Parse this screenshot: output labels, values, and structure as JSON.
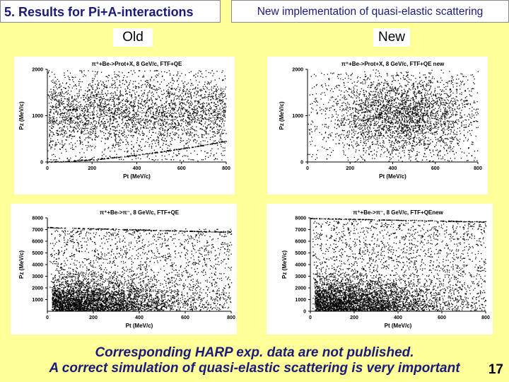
{
  "header": {
    "left_title": "5. Results for Pi+A-interactions",
    "right_title": "New implementation of quasi-elastic scattering"
  },
  "columns": {
    "old_label": "Old",
    "new_label": "New"
  },
  "footer": {
    "line1": "Corresponding HARP exp. data are not published.",
    "line2": "A correct simulation of quasi-elastic scattering is very important",
    "page_number": "17"
  },
  "chart_data": [
    {
      "type": "scatter",
      "title": "π⁺+Be->Prot+X, 8 GeV/c, FTF+QE",
      "xlabel": "Pt (MeV/c)",
      "ylabel": "Pz (MeV/c)",
      "xlim": [
        0,
        800
      ],
      "ylim": [
        0,
        2000
      ],
      "xticks": [
        0,
        200,
        400,
        600,
        800
      ],
      "yticks": [
        0,
        1000,
        2000
      ],
      "features": [
        "dense band Pz 700-1600",
        "curved artifact line rising from (0,0) to (800,450)"
      ]
    },
    {
      "type": "scatter",
      "title": "π⁺+Be->Prot+X, 8 GeV/c, FTF+QE new",
      "xlabel": "Pt (MeV/c)",
      "ylabel": "Pz (MeV/c)",
      "xlim": [
        0,
        800
      ],
      "ylim": [
        0,
        2000
      ],
      "xticks": [
        0,
        200,
        400,
        600,
        800
      ],
      "yticks": [
        0,
        1000,
        2000
      ],
      "features": [
        "diffuse cloud centred near Pt 450, Pz 1000"
      ]
    },
    {
      "type": "scatter",
      "title": "π⁺+Be->π⁻, 8 GeV/c, FTF+QE",
      "xlabel": "Pt (MeV/c)",
      "ylabel": "Pz (MeV/c)",
      "xlim": [
        0,
        800
      ],
      "ylim": [
        0,
        8000
      ],
      "xticks": [
        0,
        200,
        400,
        600,
        800
      ],
      "yticks": [
        1000,
        2000,
        3000,
        4000,
        5000,
        6000,
        7000,
        8000
      ],
      "features": [
        "dense cluster at low Pz",
        "line from (0,7200) to (800,6800)"
      ]
    },
    {
      "type": "scatter",
      "title": "π⁺+Be->π⁻, 8 GeV/c, FTF+QEnew",
      "xlabel": "Pt (MeV/c)",
      "ylabel": "Pz (MeV/c)",
      "xlim": [
        0,
        800
      ],
      "ylim": [
        0,
        8000
      ],
      "xticks": [
        0,
        200,
        400,
        600,
        800
      ],
      "yticks": [
        0,
        1000,
        2000,
        3000,
        4000,
        5000,
        6000,
        7000,
        8000
      ],
      "features": [
        "dense cluster at low Pz",
        "line near Pz 8000 descending slightly"
      ]
    }
  ]
}
